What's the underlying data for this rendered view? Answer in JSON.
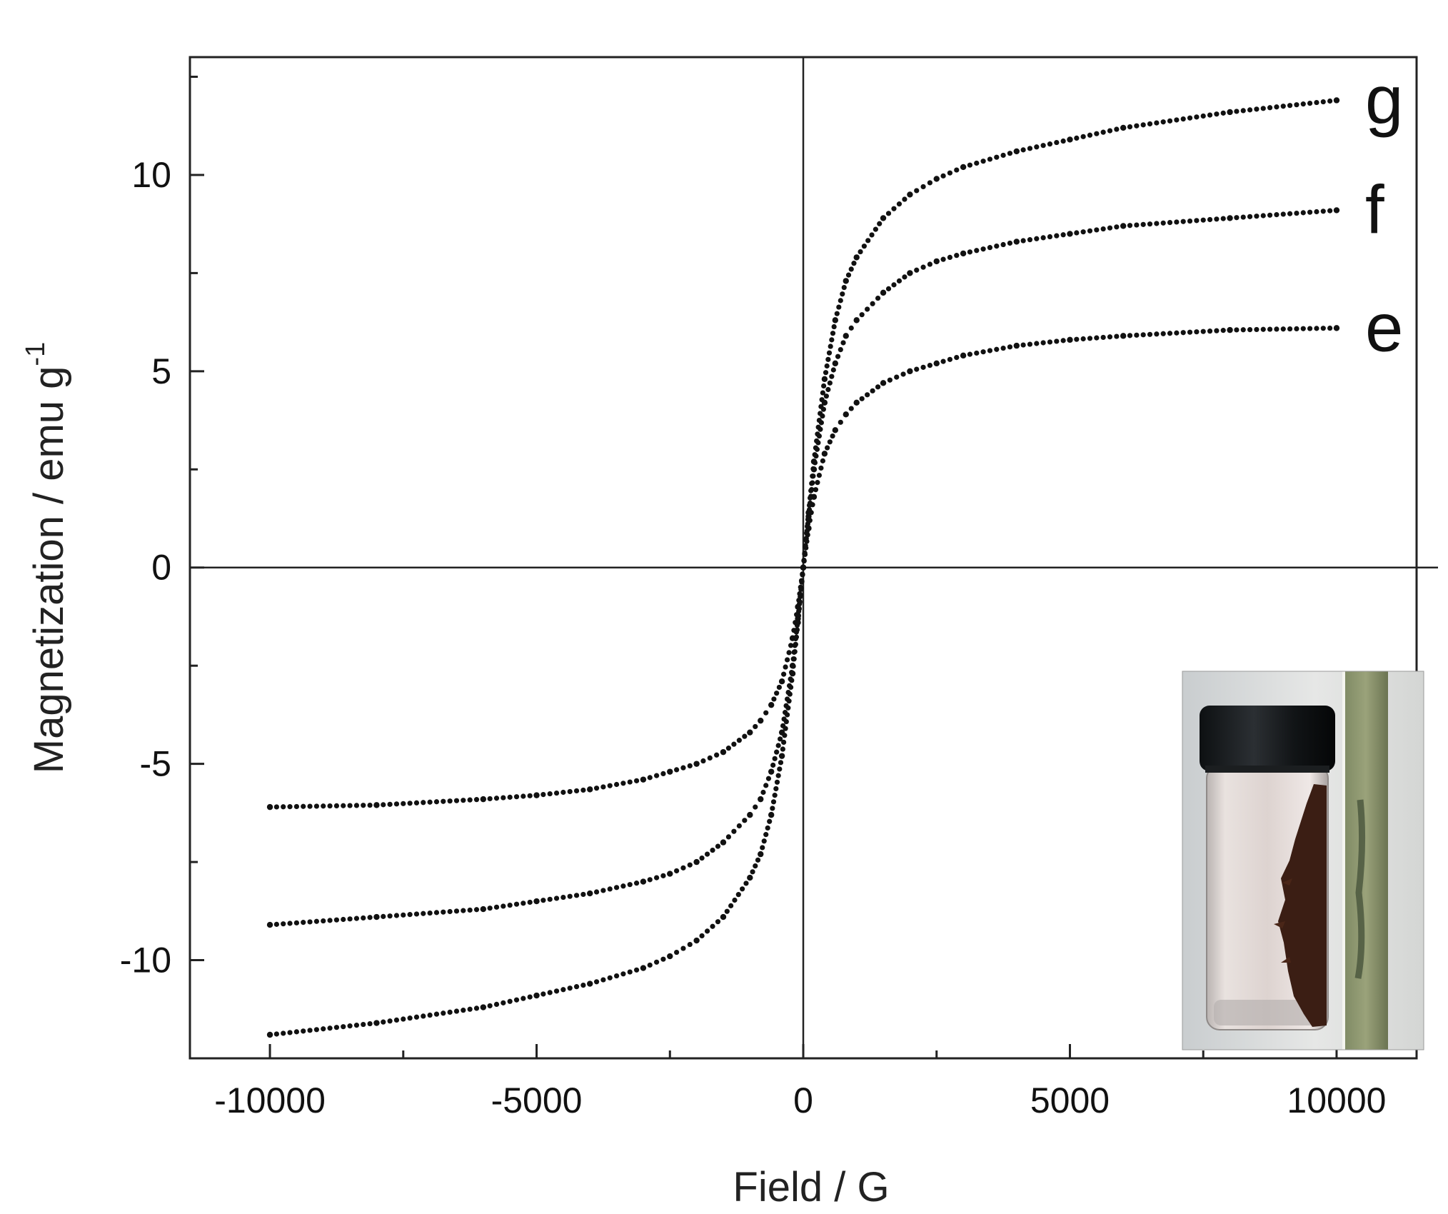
{
  "chart_data": {
    "type": "scatter",
    "title": "",
    "xlabel": "Field / G",
    "ylabel": "Magnetization / emu g",
    "ylabel_superscript": "-1",
    "xlim": [
      -11500,
      11500
    ],
    "ylim": [
      -12.5,
      13.0
    ],
    "x_ticks": [
      -10000,
      -5000,
      0,
      5000,
      10000
    ],
    "x_tick_labels": [
      "-10000",
      "-5000",
      "0",
      "5000",
      "10000"
    ],
    "x_minor_ticks": [
      -7500,
      -2500,
      2500,
      7500
    ],
    "y_ticks": [
      -10,
      -5,
      0,
      5,
      10
    ],
    "y_tick_labels": [
      "-10",
      "-5",
      "0",
      "5",
      "10"
    ],
    "y_minor_ticks": [
      -12.5,
      -7.5,
      -2.5,
      2.5,
      7.5,
      12.5
    ],
    "grid": false,
    "zero_lines": true,
    "series": [
      {
        "name": "e",
        "x": [
          -10000,
          -8000,
          -6000,
          -5000,
          -4000,
          -3000,
          -2500,
          -2000,
          -1500,
          -1000,
          -800,
          -600,
          -400,
          -200,
          -100,
          0,
          100,
          200,
          400,
          600,
          800,
          1000,
          1500,
          2000,
          2500,
          3000,
          4000,
          5000,
          6000,
          8000,
          10000
        ],
        "y": [
          -6.1,
          -6.05,
          -5.9,
          -5.8,
          -5.65,
          -5.4,
          -5.2,
          -5.0,
          -4.7,
          -4.2,
          -3.9,
          -3.5,
          -2.9,
          -1.8,
          -1.0,
          0,
          1.0,
          1.8,
          2.9,
          3.5,
          3.9,
          4.2,
          4.7,
          5.0,
          5.2,
          5.4,
          5.65,
          5.8,
          5.9,
          6.05,
          6.1
        ]
      },
      {
        "name": "f",
        "x": [
          -10000,
          -8000,
          -6000,
          -5000,
          -4000,
          -3000,
          -2500,
          -2000,
          -1500,
          -1000,
          -800,
          -600,
          -400,
          -200,
          -100,
          0,
          100,
          200,
          400,
          600,
          800,
          1000,
          1500,
          2000,
          2500,
          3000,
          4000,
          5000,
          6000,
          8000,
          10000
        ],
        "y": [
          -9.1,
          -8.9,
          -8.7,
          -8.5,
          -8.3,
          -8.0,
          -7.8,
          -7.5,
          -7.0,
          -6.3,
          -5.9,
          -5.2,
          -4.2,
          -2.5,
          -1.3,
          0,
          1.3,
          2.5,
          4.2,
          5.2,
          5.9,
          6.3,
          7.0,
          7.5,
          7.8,
          8.0,
          8.3,
          8.5,
          8.7,
          8.9,
          9.1
        ]
      },
      {
        "name": "g",
        "x": [
          -10000,
          -8000,
          -6000,
          -5000,
          -4000,
          -3000,
          -2500,
          -2000,
          -1500,
          -1000,
          -800,
          -600,
          -400,
          -200,
          -100,
          0,
          100,
          200,
          400,
          600,
          800,
          1000,
          1500,
          2000,
          2500,
          3000,
          4000,
          5000,
          6000,
          8000,
          10000
        ],
        "y": [
          -11.9,
          -11.6,
          -11.2,
          -10.9,
          -10.6,
          -10.2,
          -9.9,
          -9.5,
          -8.9,
          -7.9,
          -7.3,
          -6.3,
          -4.8,
          -2.7,
          -1.4,
          0,
          1.4,
          2.7,
          4.8,
          6.3,
          7.3,
          7.9,
          8.9,
          9.5,
          9.9,
          10.2,
          10.6,
          10.9,
          11.2,
          11.6,
          11.9
        ]
      }
    ],
    "inset": {
      "description_visible": false,
      "subject": "vial-with-magnetic-powder-and-magnet-photo"
    },
    "colors": {
      "data": "#111111",
      "axis": "#222222",
      "background": "#ffffff"
    }
  }
}
